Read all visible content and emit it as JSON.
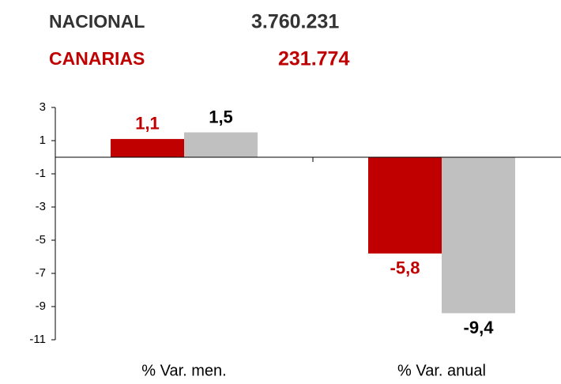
{
  "header": [
    {
      "label": "NACIONAL",
      "value": "3.760.231"
    },
    {
      "label": "CANARIAS",
      "value": "231.774"
    }
  ],
  "chart_data": {
    "type": "bar",
    "categories": [
      "% Var. men.",
      "% Var. anual"
    ],
    "series": [
      {
        "color": "#c00000",
        "values": [
          1.1,
          -5.8
        ],
        "value_labels": [
          "1,1",
          "-5,8"
        ],
        "label_color": "#c00000"
      },
      {
        "color": "#c0c0c0",
        "values": [
          1.5,
          -9.4
        ],
        "value_labels": [
          "1,5",
          "-9,4"
        ],
        "label_color": "#000000"
      }
    ],
    "ylim": [
      -11,
      3
    ],
    "yticks": [
      3,
      1,
      -1,
      -3,
      -5,
      -7,
      -9,
      -11
    ],
    "grid": false
  }
}
